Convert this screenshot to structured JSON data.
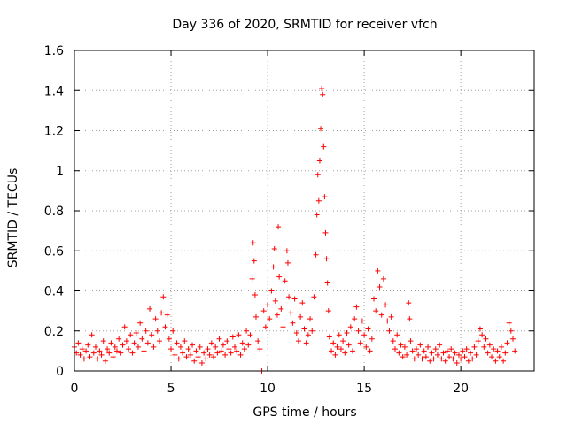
{
  "chart_data": {
    "type": "scatter",
    "title": "Day 336 of 2020, SRMTID for receiver vfch",
    "xlabel": "GPS time / hours",
    "ylabel": "SRMTID / TECUs",
    "xlim": [
      0,
      23.8
    ],
    "ylim": [
      0,
      1.6
    ],
    "grid": true,
    "marker": "+",
    "color": "#ff0000",
    "x_ticks": [
      {
        "value": 0,
        "label": "0"
      },
      {
        "value": 5,
        "label": "5"
      },
      {
        "value": 10,
        "label": "10"
      },
      {
        "value": 15,
        "label": "15"
      },
      {
        "value": 20,
        "label": "20"
      }
    ],
    "y_ticks": [
      {
        "value": 0,
        "label": "0"
      },
      {
        "value": 0.2,
        "label": "0.2"
      },
      {
        "value": 0.4,
        "label": "0.4"
      },
      {
        "value": 0.6,
        "label": "0.6"
      },
      {
        "value": 0.8,
        "label": "0.8"
      },
      {
        "value": 1.0,
        "label": "1"
      },
      {
        "value": 1.2,
        "label": "1.2"
      },
      {
        "value": 1.4,
        "label": "1.4"
      },
      {
        "value": 1.6,
        "label": "1.6"
      }
    ],
    "series": [
      {
        "name": "SRMTID",
        "points": [
          [
            0.0,
            0.12
          ],
          [
            0.1,
            0.09
          ],
          [
            0.2,
            0.14
          ],
          [
            0.3,
            0.08
          ],
          [
            0.4,
            0.11
          ],
          [
            0.5,
            0.06
          ],
          [
            0.6,
            0.1
          ],
          [
            0.7,
            0.13
          ],
          [
            0.8,
            0.07
          ],
          [
            0.9,
            0.18
          ],
          [
            1.0,
            0.09
          ],
          [
            1.1,
            0.12
          ],
          [
            1.2,
            0.06
          ],
          [
            1.3,
            0.1
          ],
          [
            1.4,
            0.08
          ],
          [
            1.5,
            0.15
          ],
          [
            1.6,
            0.05
          ],
          [
            1.7,
            0.11
          ],
          [
            1.8,
            0.09
          ],
          [
            1.9,
            0.14
          ],
          [
            2.0,
            0.07
          ],
          [
            2.1,
            0.12
          ],
          [
            2.2,
            0.1
          ],
          [
            2.3,
            0.16
          ],
          [
            2.4,
            0.09
          ],
          [
            2.5,
            0.13
          ],
          [
            2.6,
            0.22
          ],
          [
            2.7,
            0.15
          ],
          [
            2.8,
            0.11
          ],
          [
            2.9,
            0.18
          ],
          [
            3.0,
            0.09
          ],
          [
            3.1,
            0.14
          ],
          [
            3.2,
            0.19
          ],
          [
            3.3,
            0.12
          ],
          [
            3.4,
            0.24
          ],
          [
            3.5,
            0.16
          ],
          [
            3.6,
            0.1
          ],
          [
            3.7,
            0.2
          ],
          [
            3.8,
            0.14
          ],
          [
            3.9,
            0.31
          ],
          [
            4.0,
            0.18
          ],
          [
            4.1,
            0.12
          ],
          [
            4.2,
            0.26
          ],
          [
            4.3,
            0.2
          ],
          [
            4.4,
            0.15
          ],
          [
            4.5,
            0.29
          ],
          [
            4.6,
            0.37
          ],
          [
            4.7,
            0.22
          ],
          [
            4.8,
            0.28
          ],
          [
            4.9,
            0.16
          ],
          [
            5.0,
            0.11
          ],
          [
            5.1,
            0.2
          ],
          [
            5.2,
            0.08
          ],
          [
            5.3,
            0.14
          ],
          [
            5.4,
            0.06
          ],
          [
            5.5,
            0.12
          ],
          [
            5.6,
            0.09
          ],
          [
            5.7,
            0.15
          ],
          [
            5.8,
            0.07
          ],
          [
            5.9,
            0.11
          ],
          [
            6.0,
            0.08
          ],
          [
            6.1,
            0.13
          ],
          [
            6.2,
            0.05
          ],
          [
            6.3,
            0.1
          ],
          [
            6.4,
            0.07
          ],
          [
            6.5,
            0.12
          ],
          [
            6.6,
            0.04
          ],
          [
            6.7,
            0.09
          ],
          [
            6.8,
            0.06
          ],
          [
            6.9,
            0.11
          ],
          [
            7.0,
            0.08
          ],
          [
            7.1,
            0.14
          ],
          [
            7.2,
            0.07
          ],
          [
            7.3,
            0.12
          ],
          [
            7.4,
            0.09
          ],
          [
            7.5,
            0.16
          ],
          [
            7.6,
            0.1
          ],
          [
            7.7,
            0.13
          ],
          [
            7.8,
            0.08
          ],
          [
            7.9,
            0.15
          ],
          [
            8.0,
            0.11
          ],
          [
            8.1,
            0.09
          ],
          [
            8.2,
            0.17
          ],
          [
            8.3,
            0.12
          ],
          [
            8.4,
            0.1
          ],
          [
            8.5,
            0.18
          ],
          [
            8.6,
            0.08
          ],
          [
            8.7,
            0.14
          ],
          [
            8.8,
            0.11
          ],
          [
            8.9,
            0.2
          ],
          [
            9.0,
            0.13
          ],
          [
            9.1,
            0.18
          ],
          [
            9.2,
            0.46
          ],
          [
            9.25,
            0.64
          ],
          [
            9.3,
            0.55
          ],
          [
            9.35,
            0.38
          ],
          [
            9.4,
            0.27
          ],
          [
            9.5,
            0.15
          ],
          [
            9.6,
            0.11
          ],
          [
            9.7,
            0.0
          ],
          [
            9.8,
            0.3
          ],
          [
            9.9,
            0.22
          ],
          [
            10.0,
            0.33
          ],
          [
            10.1,
            0.26
          ],
          [
            10.2,
            0.4
          ],
          [
            10.3,
            0.52
          ],
          [
            10.35,
            0.61
          ],
          [
            10.4,
            0.35
          ],
          [
            10.5,
            0.28
          ],
          [
            10.55,
            0.72
          ],
          [
            10.6,
            0.47
          ],
          [
            10.7,
            0.31
          ],
          [
            10.8,
            0.22
          ],
          [
            10.9,
            0.45
          ],
          [
            11.0,
            0.6
          ],
          [
            11.05,
            0.54
          ],
          [
            11.1,
            0.37
          ],
          [
            11.2,
            0.29
          ],
          [
            11.3,
            0.24
          ],
          [
            11.4,
            0.36
          ],
          [
            11.5,
            0.19
          ],
          [
            11.6,
            0.15
          ],
          [
            11.7,
            0.27
          ],
          [
            11.8,
            0.34
          ],
          [
            11.9,
            0.21
          ],
          [
            12.0,
            0.14
          ],
          [
            12.1,
            0.18
          ],
          [
            12.2,
            0.26
          ],
          [
            12.3,
            0.2
          ],
          [
            12.4,
            0.37
          ],
          [
            12.5,
            0.58
          ],
          [
            12.55,
            0.78
          ],
          [
            12.6,
            0.98
          ],
          [
            12.65,
            0.85
          ],
          [
            12.7,
            1.05
          ],
          [
            12.75,
            1.21
          ],
          [
            12.8,
            1.41
          ],
          [
            12.85,
            1.38
          ],
          [
            12.9,
            1.12
          ],
          [
            12.95,
            0.87
          ],
          [
            13.0,
            0.69
          ],
          [
            13.05,
            0.56
          ],
          [
            13.1,
            0.44
          ],
          [
            13.15,
            0.3
          ],
          [
            13.2,
            0.17
          ],
          [
            13.3,
            0.1
          ],
          [
            13.4,
            0.14
          ],
          [
            13.5,
            0.08
          ],
          [
            13.6,
            0.12
          ],
          [
            13.7,
            0.18
          ],
          [
            13.8,
            0.11
          ],
          [
            13.9,
            0.15
          ],
          [
            14.0,
            0.09
          ],
          [
            14.1,
            0.19
          ],
          [
            14.2,
            0.13
          ],
          [
            14.3,
            0.22
          ],
          [
            14.4,
            0.1
          ],
          [
            14.5,
            0.26
          ],
          [
            14.6,
            0.32
          ],
          [
            14.7,
            0.2
          ],
          [
            14.8,
            0.14
          ],
          [
            14.9,
            0.25
          ],
          [
            15.0,
            0.18
          ],
          [
            15.1,
            0.12
          ],
          [
            15.2,
            0.21
          ],
          [
            15.3,
            0.1
          ],
          [
            15.4,
            0.16
          ],
          [
            15.5,
            0.36
          ],
          [
            15.6,
            0.3
          ],
          [
            15.7,
            0.5
          ],
          [
            15.8,
            0.42
          ],
          [
            15.9,
            0.28
          ],
          [
            16.0,
            0.46
          ],
          [
            16.1,
            0.33
          ],
          [
            16.2,
            0.25
          ],
          [
            16.3,
            0.2
          ],
          [
            16.4,
            0.27
          ],
          [
            16.5,
            0.15
          ],
          [
            16.6,
            0.11
          ],
          [
            16.7,
            0.18
          ],
          [
            16.8,
            0.09
          ],
          [
            16.9,
            0.13
          ],
          [
            17.0,
            0.07
          ],
          [
            17.1,
            0.12
          ],
          [
            17.2,
            0.08
          ],
          [
            17.3,
            0.34
          ],
          [
            17.35,
            0.26
          ],
          [
            17.4,
            0.15
          ],
          [
            17.5,
            0.1
          ],
          [
            17.6,
            0.06
          ],
          [
            17.7,
            0.11
          ],
          [
            17.8,
            0.08
          ],
          [
            17.9,
            0.13
          ],
          [
            18.0,
            0.06
          ],
          [
            18.1,
            0.1
          ],
          [
            18.2,
            0.07
          ],
          [
            18.3,
            0.12
          ],
          [
            18.4,
            0.05
          ],
          [
            18.5,
            0.09
          ],
          [
            18.6,
            0.06
          ],
          [
            18.7,
            0.11
          ],
          [
            18.8,
            0.08
          ],
          [
            18.9,
            0.13
          ],
          [
            19.0,
            0.06
          ],
          [
            19.1,
            0.09
          ],
          [
            19.2,
            0.05
          ],
          [
            19.3,
            0.1
          ],
          [
            19.4,
            0.07
          ],
          [
            19.5,
            0.11
          ],
          [
            19.6,
            0.06
          ],
          [
            19.7,
            0.09
          ],
          [
            19.8,
            0.04
          ],
          [
            19.9,
            0.08
          ],
          [
            20.0,
            0.06
          ],
          [
            20.1,
            0.1
          ],
          [
            20.2,
            0.07
          ],
          [
            20.3,
            0.11
          ],
          [
            20.4,
            0.05
          ],
          [
            20.5,
            0.09
          ],
          [
            20.6,
            0.06
          ],
          [
            20.7,
            0.12
          ],
          [
            20.8,
            0.08
          ],
          [
            20.9,
            0.15
          ],
          [
            21.0,
            0.21
          ],
          [
            21.1,
            0.18
          ],
          [
            21.2,
            0.12
          ],
          [
            21.3,
            0.16
          ],
          [
            21.4,
            0.09
          ],
          [
            21.5,
            0.13
          ],
          [
            21.6,
            0.07
          ],
          [
            21.7,
            0.11
          ],
          [
            21.8,
            0.05
          ],
          [
            21.9,
            0.1
          ],
          [
            22.0,
            0.07
          ],
          [
            22.1,
            0.12
          ],
          [
            22.2,
            0.05
          ],
          [
            22.3,
            0.09
          ],
          [
            22.4,
            0.14
          ],
          [
            22.5,
            0.24
          ],
          [
            22.6,
            0.2
          ],
          [
            22.7,
            0.16
          ],
          [
            22.8,
            0.1
          ]
        ]
      }
    ]
  }
}
